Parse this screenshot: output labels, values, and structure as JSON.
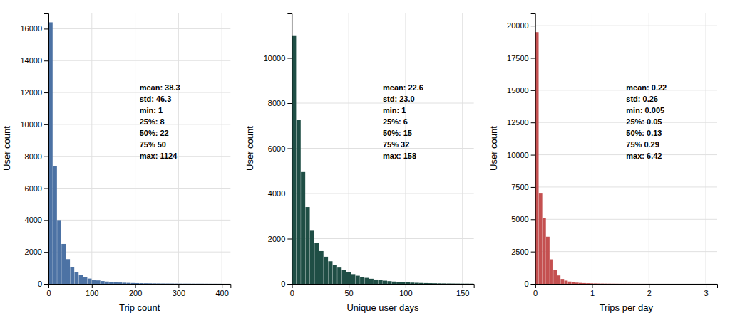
{
  "chart_data": [
    {
      "type": "histogram",
      "xlabel": "Trip count",
      "ylabel": "User count",
      "color": "#4c72a4",
      "xlim": [
        0,
        420
      ],
      "ylim": [
        0,
        17000
      ],
      "xticks": [
        0,
        100,
        200,
        300,
        400
      ],
      "yticks": [
        0,
        2000,
        4000,
        6000,
        8000,
        10000,
        12000,
        14000,
        16000
      ],
      "grid": true,
      "annotation": "mean: 38.3\nstd: 46.3\nmin: 1\n25%: 8\n50%: 22\n75% 50\nmax: 1124",
      "bins": [
        0,
        10,
        20,
        30,
        40,
        50,
        60,
        70,
        80,
        90,
        100,
        110,
        120,
        130,
        140,
        150,
        160,
        170,
        180,
        190,
        200,
        210,
        220,
        230,
        240,
        250,
        260,
        270,
        280,
        290,
        300,
        310,
        320,
        330,
        340,
        350,
        360,
        370,
        380,
        390,
        400
      ],
      "values": [
        16400,
        7400,
        4000,
        2500,
        1550,
        1050,
        750,
        560,
        420,
        330,
        265,
        215,
        175,
        145,
        120,
        100,
        85,
        72,
        62,
        53,
        46,
        40,
        35,
        31,
        27,
        24,
        21,
        19,
        17,
        15,
        13,
        12,
        11,
        10,
        9,
        8,
        7,
        6,
        5,
        4
      ]
    },
    {
      "type": "histogram",
      "xlabel": "Unique user days",
      "ylabel": "User count",
      "color": "#1f4e45",
      "xlim": [
        0,
        160
      ],
      "ylim": [
        0,
        12000
      ],
      "xticks": [
        0,
        50,
        100,
        150
      ],
      "yticks": [
        0,
        2000,
        4000,
        6000,
        8000,
        10000
      ],
      "grid": true,
      "annotation": "mean: 22.6\nstd: 23.0\nmin: 1\n25%: 6\n50%: 15\n75% 32\nmax: 158",
      "bins": [
        0,
        4,
        8,
        12,
        16,
        20,
        24,
        28,
        32,
        36,
        40,
        44,
        48,
        52,
        56,
        60,
        64,
        68,
        72,
        76,
        80,
        84,
        88,
        92,
        96,
        100,
        104,
        108,
        112,
        116,
        120,
        124,
        128,
        132,
        136,
        140,
        144,
        148,
        152,
        156,
        160
      ],
      "values": [
        11000,
        7250,
        4950,
        3400,
        2350,
        1800,
        1450,
        1200,
        1000,
        850,
        720,
        610,
        510,
        430,
        360,
        310,
        265,
        225,
        190,
        160,
        140,
        120,
        102,
        88,
        75,
        64,
        55,
        47,
        40,
        34,
        29,
        25,
        21,
        18,
        15,
        13,
        11,
        9,
        8,
        7
      ]
    },
    {
      "type": "histogram",
      "xlabel": "Trips per day",
      "ylabel": "User count",
      "color": "#c45050",
      "xlim": [
        0,
        3.2
      ],
      "ylim": [
        0,
        21000
      ],
      "xticks": [
        0,
        1,
        2,
        3
      ],
      "yticks": [
        0,
        2500,
        5000,
        7500,
        10000,
        12500,
        15000,
        17500,
        20000
      ],
      "grid": true,
      "annotation": "mean: 0.22\nstd: 0.26\nmin: 0.005\n25%: 0.05\n50%: 0.13\n75% 0.29\nmax: 6.42",
      "bins": [
        0,
        0.064,
        0.128,
        0.192,
        0.256,
        0.32,
        0.384,
        0.448,
        0.512,
        0.576,
        0.64,
        0.704,
        0.768,
        0.832,
        0.896,
        0.96,
        1.024,
        1.088,
        1.152,
        1.216,
        1.28,
        1.344,
        1.408,
        1.472,
        1.536,
        1.6,
        1.664,
        1.728,
        1.792,
        1.856,
        1.92,
        1.984,
        2.048,
        2.112,
        2.176,
        2.24,
        2.304,
        2.368,
        2.432,
        2.496,
        2.56,
        2.624,
        2.688,
        2.752,
        2.816,
        2.88,
        2.944,
        3.008,
        3.072,
        3.136,
        3.2
      ],
      "values": [
        19500,
        7050,
        5100,
        3650,
        1900,
        1100,
        650,
        380,
        250,
        180,
        130,
        95,
        75,
        60,
        48,
        38,
        31,
        25,
        20,
        17,
        14,
        11,
        9,
        7,
        6,
        5,
        4,
        3,
        3,
        2,
        2,
        2,
        1,
        1,
        1,
        1,
        1,
        0,
        0,
        0,
        0,
        0,
        0,
        0,
        0,
        0,
        0,
        0,
        0,
        0
      ]
    }
  ]
}
